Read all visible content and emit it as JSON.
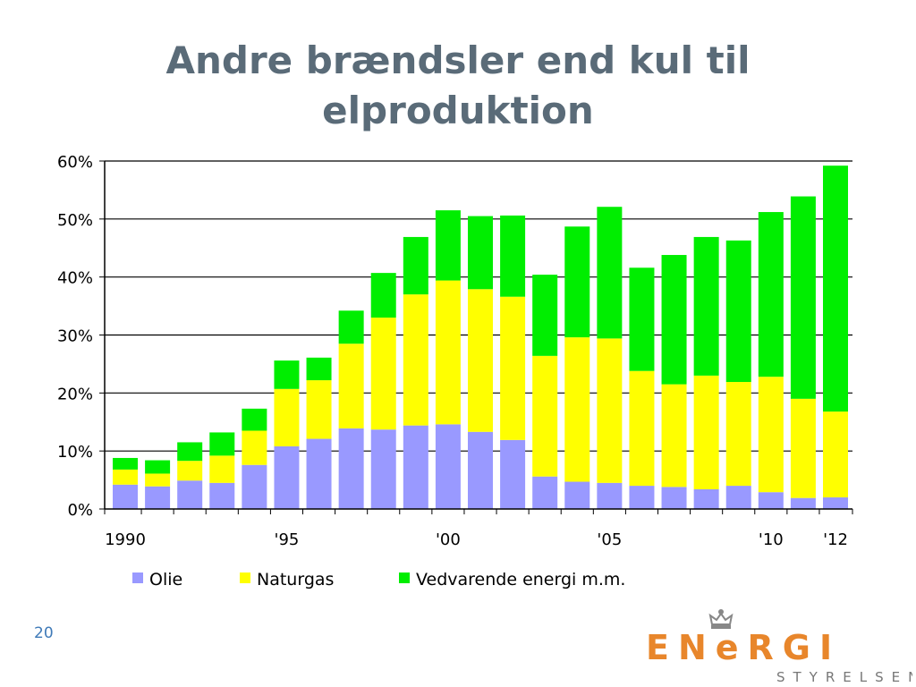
{
  "slide": {
    "title_line1": "Andre brændsler end kul til",
    "title_line2": "elproduktion",
    "page_number": "20"
  },
  "logo": {
    "word_part1": "EN",
    "word_mid": "e",
    "word_part2": "RGI",
    "subtitle": "STYRELSEN",
    "color": "#e8862b"
  },
  "chart_data": {
    "type": "bar",
    "stacked": true,
    "title": "",
    "xlabel": "",
    "ylabel": "",
    "ylim": [
      0,
      60
    ],
    "y_unit": "%",
    "y_ticks": [
      "0%",
      "10%",
      "20%",
      "30%",
      "40%",
      "50%",
      "60%"
    ],
    "grid": true,
    "legend_position": "bottom",
    "categories": [
      1990,
      1991,
      1992,
      1993,
      1994,
      1995,
      1996,
      1997,
      1998,
      1999,
      2000,
      2001,
      2002,
      2003,
      2004,
      2005,
      2006,
      2007,
      2008,
      2009,
      2010,
      2011,
      2012
    ],
    "x_tick_labels": [
      {
        "year": 1990,
        "label": "1990"
      },
      {
        "year": 1995,
        "label": "'95"
      },
      {
        "year": 2000,
        "label": "'00"
      },
      {
        "year": 2005,
        "label": "'05"
      },
      {
        "year": 2010,
        "label": "'10"
      },
      {
        "year": 2012,
        "label": "'12"
      }
    ],
    "series": [
      {
        "name": "Olie",
        "color": "#9999ff",
        "values": [
          4.2,
          3.9,
          4.9,
          4.5,
          7.6,
          10.8,
          12.1,
          13.9,
          13.7,
          14.4,
          14.6,
          13.3,
          11.9,
          5.6,
          4.7,
          4.5,
          4.0,
          3.8,
          3.4,
          4.0,
          2.9,
          1.9,
          2.0
        ]
      },
      {
        "name": "Naturgas",
        "color": "#ffff00",
        "values": [
          2.6,
          2.2,
          3.4,
          4.7,
          5.9,
          9.9,
          10.1,
          14.6,
          19.3,
          22.6,
          24.8,
          24.6,
          24.7,
          20.8,
          24.9,
          24.9,
          19.8,
          17.7,
          19.6,
          17.9,
          19.9,
          17.1,
          14.8
        ]
      },
      {
        "name": "Vedvarende energi m.m.",
        "color": "#00ee00",
        "values": [
          2.0,
          2.3,
          3.2,
          4.0,
          3.8,
          4.9,
          3.9,
          5.7,
          7.7,
          9.9,
          12.1,
          12.6,
          14.0,
          14.0,
          19.1,
          22.7,
          17.8,
          22.3,
          23.9,
          24.4,
          28.4,
          34.9,
          42.4
        ]
      }
    ]
  }
}
